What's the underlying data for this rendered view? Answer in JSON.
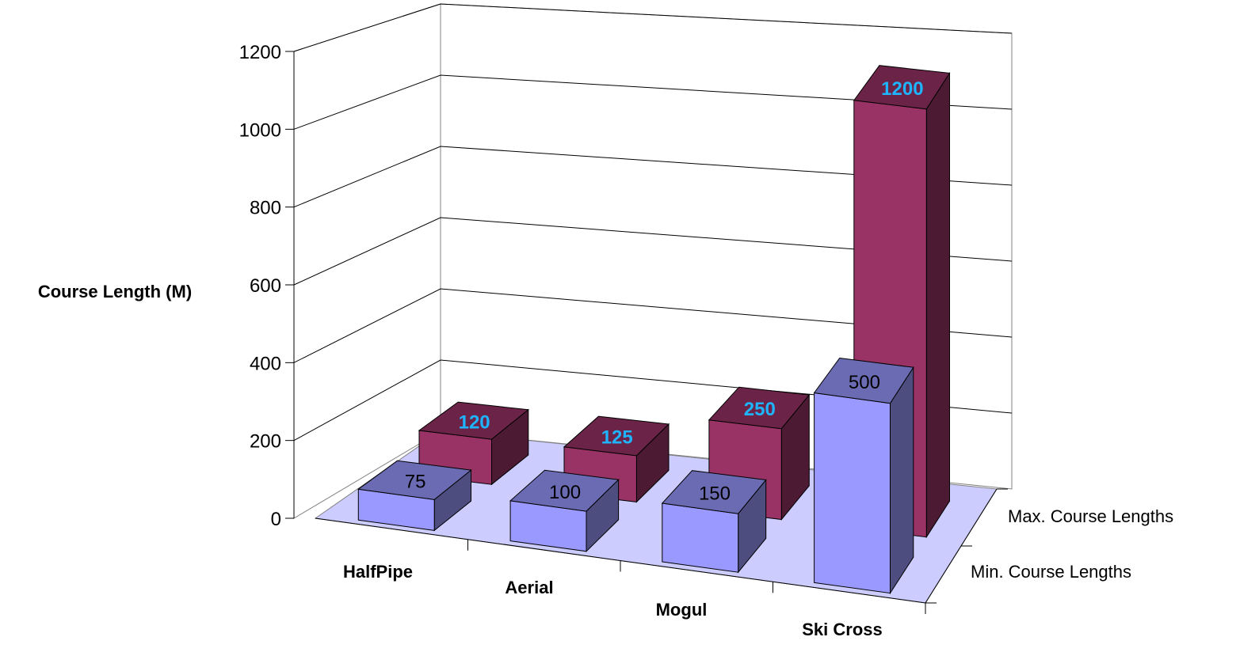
{
  "chart_data": {
    "type": "bar",
    "style": "3d-clustered-column",
    "ylabel": "Course Length (M)",
    "ylim": [
      0,
      1200
    ],
    "yticks": [
      0,
      200,
      400,
      600,
      800,
      1000,
      1200
    ],
    "categories": [
      "HalfPipe",
      "Aerial",
      "Mogul",
      "Ski Cross"
    ],
    "series": [
      {
        "name": "Min. Course Lengths",
        "values": [
          75,
          100,
          150,
          500
        ],
        "color": "#9999ff"
      },
      {
        "name": "Max. Course Lengths",
        "values": [
          120,
          125,
          250,
          1200
        ],
        "color": "#993366"
      }
    ],
    "grid": true,
    "floor_color": "#ccccff",
    "value_label_color_max": "#1eb4ff"
  }
}
